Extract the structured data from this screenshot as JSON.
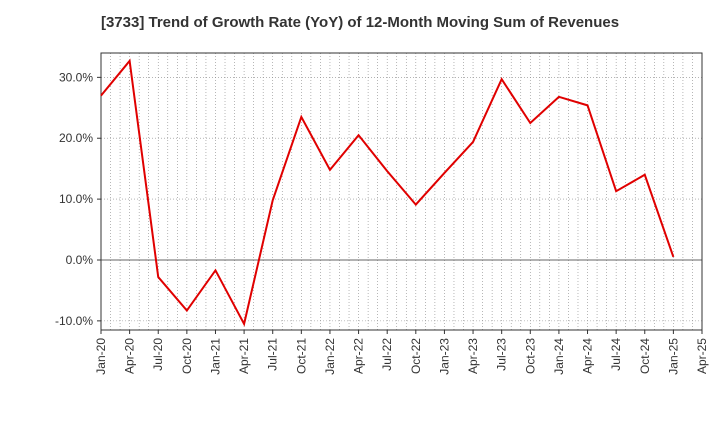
{
  "chart_data": {
    "type": "line",
    "title": "[3733]  Trend of Growth Rate (YoY) of 12-Month Moving Sum of Revenues",
    "xlabel": "",
    "ylabel": "",
    "x": [
      "Jan-20",
      "Apr-20",
      "Jul-20",
      "Oct-20",
      "Jan-21",
      "Apr-21",
      "Jul-21",
      "Oct-21",
      "Jan-22",
      "Apr-22",
      "Jul-22",
      "Oct-22",
      "Jan-23",
      "Apr-23",
      "Jul-23",
      "Oct-23",
      "Jan-24",
      "Apr-24",
      "Jul-24",
      "Oct-24",
      "Jan-25"
    ],
    "x_ticks": [
      "Jan-20",
      "Apr-20",
      "Jul-20",
      "Oct-20",
      "Jan-21",
      "Apr-21",
      "Jul-21",
      "Oct-21",
      "Jan-22",
      "Apr-22",
      "Jul-22",
      "Oct-22",
      "Jan-23",
      "Apr-23",
      "Jul-23",
      "Oct-23",
      "Jan-24",
      "Apr-24",
      "Jul-24",
      "Oct-24",
      "Jan-25",
      "Apr-25"
    ],
    "series": [
      {
        "values": [
          27.0,
          32.7,
          -2.8,
          -8.3,
          -1.7,
          -10.5,
          9.8,
          23.5,
          14.8,
          20.5,
          14.6,
          9.1,
          14.3,
          19.4,
          29.7,
          22.5,
          26.8,
          25.4,
          11.3,
          14.0,
          0.5
        ],
        "color": "#e00000"
      }
    ],
    "ylim": [
      -11.5,
      34.0
    ],
    "y_ticks": [
      -10,
      0,
      10,
      20,
      30
    ],
    "y_tick_labels": [
      "-10.0%",
      "0.0%",
      "10.0%",
      "20.0%",
      "30.0%"
    ],
    "grid": true,
    "legend": "none"
  }
}
